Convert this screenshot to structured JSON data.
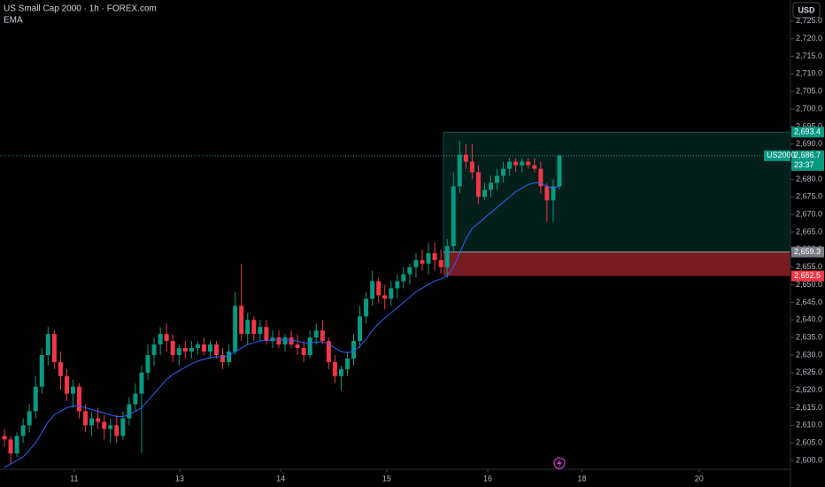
{
  "chart_data": {
    "type": "candlestick",
    "title": "US Small Cap 2000 · 1h · FOREX.com",
    "currency": "USD",
    "x": [
      0,
      1,
      2,
      3,
      4,
      5,
      6,
      7,
      8,
      9,
      10,
      11,
      12,
      13,
      14,
      15,
      16,
      17,
      18,
      19,
      20,
      21,
      22,
      23,
      24,
      25,
      26,
      27,
      28,
      29,
      30,
      31,
      32,
      33,
      34,
      35,
      36,
      37,
      38,
      39,
      40,
      41,
      42,
      43,
      44,
      45,
      46,
      47,
      48,
      49,
      50,
      51,
      52,
      53,
      54,
      55,
      56,
      57,
      58,
      59,
      60,
      61,
      62,
      63,
      64,
      65,
      66,
      67,
      68,
      69,
      70,
      71,
      72,
      73,
      74,
      75,
      76,
      77,
      78,
      79,
      80,
      81,
      82,
      83,
      84,
      85,
      86,
      87,
      88,
      89
    ],
    "open": [
      2607,
      2606,
      2602,
      2607,
      2610,
      2614,
      2621,
      2630,
      2636,
      2628,
      2624,
      2619,
      2621,
      2614,
      2610,
      2612,
      2611,
      2609,
      2610,
      2607,
      2612,
      2616,
      2619,
      2625,
      2630,
      2633,
      2636,
      2634,
      2630,
      2632,
      2631,
      2632,
      2633,
      2631,
      2633,
      2630,
      2628,
      2631,
      2644,
      2636,
      2640,
      2636,
      2638,
      2634,
      2635,
      2633,
      2635,
      2633,
      2632,
      2630,
      2635,
      2637,
      2634,
      2628,
      2624,
      2626,
      2629,
      2634,
      2641,
      2646,
      2651,
      2647,
      2646,
      2649,
      2651,
      2653,
      2655,
      2657,
      2656,
      2659,
      2657,
      2655,
      2661,
      2678,
      2687,
      2685,
      2682,
      2675,
      2677,
      2679,
      2681,
      2683,
      2685,
      2684,
      2685,
      2684,
      2683,
      2678,
      2674,
      2678
    ],
    "high": [
      2609,
      2607,
      2608,
      2612,
      2616,
      2624,
      2632,
      2638,
      2637,
      2631,
      2626,
      2623,
      2622,
      2616,
      2614,
      2615,
      2613,
      2612,
      2613,
      2614,
      2618,
      2622,
      2627,
      2633,
      2635,
      2638,
      2639,
      2636,
      2633,
      2634,
      2634,
      2634,
      2635,
      2634,
      2634,
      2632,
      2633,
      2648,
      2656,
      2642,
      2641,
      2640,
      2640,
      2637,
      2637,
      2636,
      2637,
      2636,
      2634,
      2637,
      2639,
      2640,
      2635,
      2630,
      2627,
      2631,
      2636,
      2644,
      2648,
      2654,
      2652,
      2650,
      2651,
      2653,
      2655,
      2656,
      2659,
      2660,
      2662,
      2662,
      2660,
      2663,
      2682,
      2691,
      2690,
      2690,
      2684,
      2679,
      2681,
      2683,
      2685,
      2686,
      2686,
      2686,
      2686,
      2686,
      2685,
      2679,
      2680,
      2687
    ],
    "low": [
      2604,
      2599,
      2601,
      2605,
      2608,
      2612,
      2619,
      2627,
      2626,
      2620,
      2617,
      2615,
      2612,
      2608,
      2607,
      2609,
      2606,
      2605,
      2605,
      2606,
      2610,
      2614,
      2602,
      2623,
      2627,
      2630,
      2631,
      2628,
      2627,
      2629,
      2629,
      2630,
      2630,
      2629,
      2629,
      2626,
      2627,
      2630,
      2634,
      2633,
      2634,
      2634,
      2633,
      2632,
      2632,
      2631,
      2632,
      2630,
      2628,
      2629,
      2633,
      2633,
      2626,
      2622,
      2620,
      2624,
      2627,
      2632,
      2639,
      2644,
      2645,
      2643,
      2644,
      2646,
      2649,
      2650,
      2652,
      2654,
      2653,
      2654,
      2653,
      2652,
      2659,
      2676,
      2683,
      2680,
      2673,
      2674,
      2675,
      2677,
      2679,
      2681,
      2682,
      2682,
      2683,
      2682,
      2676,
      2668,
      2668,
      2677
    ],
    "close": [
      2606,
      2602,
      2607,
      2610,
      2614,
      2621,
      2630,
      2636,
      2628,
      2624,
      2619,
      2621,
      2614,
      2610,
      2612,
      2611,
      2609,
      2610,
      2607,
      2612,
      2616,
      2619,
      2625,
      2630,
      2633,
      2636,
      2634,
      2630,
      2632,
      2631,
      2632,
      2633,
      2631,
      2633,
      2630,
      2628,
      2631,
      2644,
      2636,
      2640,
      2636,
      2638,
      2634,
      2635,
      2633,
      2635,
      2633,
      2632,
      2630,
      2635,
      2637,
      2634,
      2628,
      2624,
      2626,
      2629,
      2634,
      2641,
      2646,
      2651,
      2647,
      2646,
      2649,
      2651,
      2653,
      2655,
      2657,
      2656,
      2659,
      2657,
      2655,
      2661,
      2678,
      2687,
      2685,
      2682,
      2675,
      2677,
      2679,
      2681,
      2683,
      2685,
      2684,
      2685,
      2684,
      2683,
      2678,
      2674,
      2678,
      2686.7
    ],
    "up_color": "#089981",
    "down_color": "#f23645",
    "ema": {
      "name": "EMA",
      "color": "#2962ff",
      "values": [
        2598,
        2599,
        2600,
        2601,
        2603,
        2605,
        2608,
        2611,
        2613,
        2614,
        2615,
        2615.5,
        2615.5,
        2615,
        2614.5,
        2614,
        2613.5,
        2613,
        2612.5,
        2612.5,
        2613,
        2614,
        2615,
        2617,
        2619,
        2621,
        2623,
        2624.5,
        2625.5,
        2626.5,
        2627.5,
        2628.3,
        2628.8,
        2629.3,
        2629.5,
        2629.5,
        2629.8,
        2631,
        2632,
        2633,
        2633.5,
        2634,
        2634.2,
        2634.3,
        2634.3,
        2634.3,
        2634.2,
        2634,
        2633.5,
        2633.4,
        2633.7,
        2633.8,
        2633.2,
        2632,
        2631,
        2630.7,
        2631,
        2632.5,
        2634.5,
        2637,
        2639,
        2640.5,
        2642,
        2643.5,
        2645,
        2646.5,
        2648,
        2649,
        2650.2,
        2651,
        2651.7,
        2652.5,
        2655,
        2659,
        2663,
        2666,
        2667.5,
        2669,
        2670.5,
        2672,
        2673.5,
        2675,
        2676.5,
        2677.5,
        2678.5,
        2679,
        2679,
        2678,
        2677.5,
        2678
      ]
    },
    "position": {
      "start_x": 70.4,
      "target": {
        "value": 2693.4,
        "label": "2,693.4"
      },
      "entry": {
        "value": 2659.3,
        "label": "2,659.3"
      },
      "stop": {
        "value": 2652.5,
        "label": "2,652.5"
      }
    },
    "last_price": {
      "symbol": "US2000",
      "value": 2686.7,
      "label": "2,686.7",
      "countdown": "23:37"
    },
    "xlim": [
      -0.71,
      126.05
    ],
    "xticks": [
      {
        "value": 11.2,
        "label": "11"
      },
      {
        "value": 28.1,
        "label": "13"
      },
      {
        "value": 44.3,
        "label": "14"
      },
      {
        "value": 61.3,
        "label": "15"
      },
      {
        "value": 77.5,
        "label": "16"
      },
      {
        "value": 92.6,
        "label": "18"
      },
      {
        "value": 111.4,
        "label": "20"
      }
    ],
    "ylim": [
      2597.5,
      2731.0
    ],
    "yticks": [
      {
        "value": 2600,
        "label": "2,600.0"
      },
      {
        "value": 2605,
        "label": "2,605.0"
      },
      {
        "value": 2610,
        "label": "2,610.0"
      },
      {
        "value": 2615,
        "label": "2,615.0"
      },
      {
        "value": 2620,
        "label": "2,620.0"
      },
      {
        "value": 2625,
        "label": "2,625.0"
      },
      {
        "value": 2630,
        "label": "2,630.0"
      },
      {
        "value": 2635,
        "label": "2,635.0"
      },
      {
        "value": 2640,
        "label": "2,640.0"
      },
      {
        "value": 2645,
        "label": "2,645.0"
      },
      {
        "value": 2650,
        "label": "2,650.0"
      },
      {
        "value": 2655,
        "label": "2,655.0"
      },
      {
        "value": 2660,
        "label": "2,660.0"
      },
      {
        "value": 2665,
        "label": "2,665.0"
      },
      {
        "value": 2670,
        "label": "2,670.0"
      },
      {
        "value": 2675,
        "label": "2,675.0"
      },
      {
        "value": 2680,
        "label": "2,680.0"
      },
      {
        "value": 2685,
        "label": "2,685.0"
      },
      {
        "value": 2690,
        "label": "2,690.0"
      },
      {
        "value": 2695,
        "label": "2,695.0"
      },
      {
        "value": 2700,
        "label": "2,700.0"
      },
      {
        "value": 2705,
        "label": "2,705.0"
      },
      {
        "value": 2710,
        "label": "2,710.0"
      },
      {
        "value": 2715,
        "label": "2,715.0"
      },
      {
        "value": 2720,
        "label": "2,720.0"
      },
      {
        "value": 2725,
        "label": "2,725.0"
      }
    ]
  }
}
